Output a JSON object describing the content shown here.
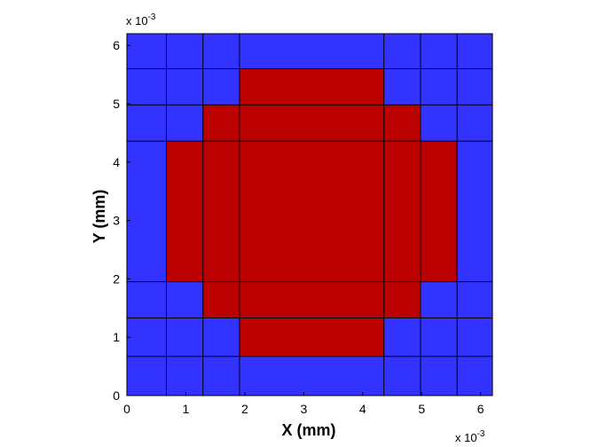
{
  "chart_data": {
    "type": "heatmap",
    "title": "",
    "xlabel": "X (mm)",
    "ylabel": "Y (mm)",
    "x_exponent_base": "x 10",
    "x_exponent_power": "-3",
    "y_exponent_base": "x 10",
    "y_exponent_power": "-3",
    "xlim": [
      0,
      6.2
    ],
    "ylim": [
      0,
      6.2
    ],
    "x_edges": [
      0,
      0.67,
      1.29,
      1.91,
      4.36,
      4.98,
      5.6,
      6.2
    ],
    "y_edges": [
      0,
      0.67,
      1.33,
      1.95,
      4.36,
      4.98,
      5.6,
      6.2
    ],
    "x_ticks": [
      0,
      1,
      2,
      3,
      4,
      5,
      6
    ],
    "y_ticks": [
      0,
      1,
      2,
      3,
      4,
      5,
      6
    ],
    "x_tick_labels": [
      "0",
      "1",
      "2",
      "3",
      "4",
      "5",
      "6"
    ],
    "y_tick_labels": [
      "0",
      "1",
      "2",
      "3",
      "4",
      "5",
      "6"
    ],
    "cells_bottom_to_top": [
      [
        0,
        0,
        0,
        0,
        0,
        0,
        0
      ],
      [
        0,
        0,
        0,
        1,
        0,
        0,
        0
      ],
      [
        0,
        0,
        1,
        1,
        1,
        0,
        0
      ],
      [
        0,
        1,
        1,
        1,
        1,
        1,
        0
      ],
      [
        0,
        0,
        1,
        1,
        1,
        0,
        0
      ],
      [
        0,
        0,
        0,
        1,
        0,
        0,
        0
      ],
      [
        0,
        0,
        0,
        0,
        0,
        0,
        0
      ]
    ],
    "colors": {
      "0": "#3333ff",
      "1": "#bb0000"
    },
    "grid": true
  }
}
